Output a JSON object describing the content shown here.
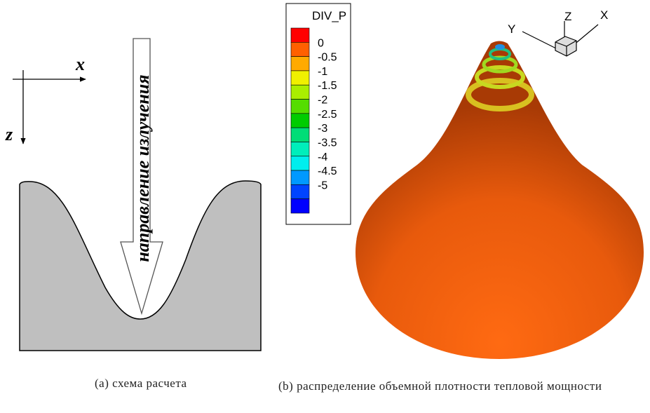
{
  "left": {
    "axis_x": "x",
    "axis_z": "z",
    "arrow_label": "направление излучения",
    "caption": "(a) схема расчета"
  },
  "right": {
    "legend": {
      "title": "DIV_P",
      "labels": [
        "0",
        "-0.5",
        "-1",
        "-1.5",
        "-2",
        "-2.5",
        "-3",
        "-3.5",
        "-4",
        "-4.5",
        "-5"
      ],
      "colors": [
        "#ff0000",
        "#ff6000",
        "#ffaa00",
        "#f0f000",
        "#aaee00",
        "#55dd00",
        "#00cc00",
        "#00dd77",
        "#00eebb",
        "#00eeee",
        "#0099ff",
        "#0044ff",
        "#0000ff"
      ]
    },
    "triad": {
      "y": "Y",
      "z": "Z",
      "x": "X"
    },
    "caption": "(b) распределение объемной плотности тепловой мощности"
  }
}
